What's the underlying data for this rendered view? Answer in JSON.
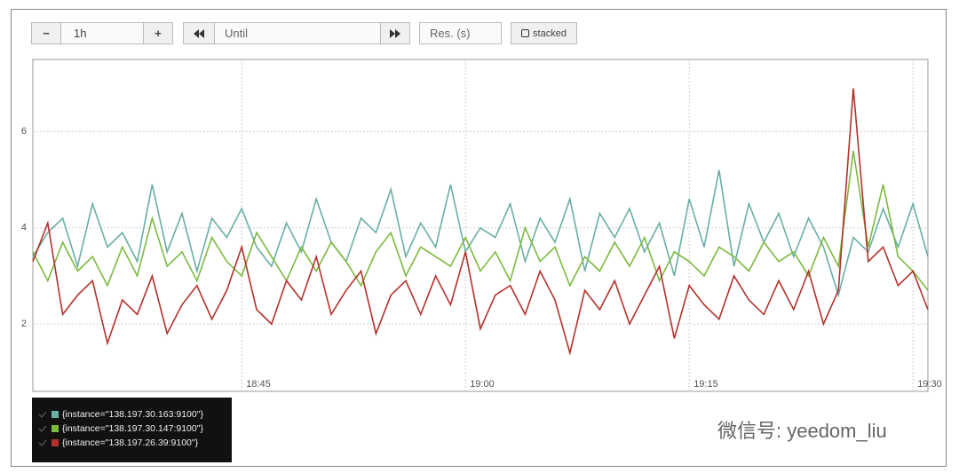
{
  "controls": {
    "minus": "−",
    "range": "1h",
    "plus": "+",
    "until": "Until",
    "resolution": "Res. (s)",
    "stacked": "stacked"
  },
  "watermark": "微信号: yeedom_liu",
  "chart_data": {
    "type": "line",
    "x": [
      "18:31",
      "18:32",
      "18:33",
      "18:34",
      "18:35",
      "18:36",
      "18:37",
      "18:38",
      "18:39",
      "18:40",
      "18:41",
      "18:42",
      "18:43",
      "18:44",
      "18:45",
      "18:46",
      "18:47",
      "18:48",
      "18:49",
      "18:50",
      "18:51",
      "18:52",
      "18:53",
      "18:54",
      "18:55",
      "18:56",
      "18:57",
      "18:58",
      "18:59",
      "19:00",
      "19:01",
      "19:02",
      "19:03",
      "19:04",
      "19:05",
      "19:06",
      "19:07",
      "19:08",
      "19:09",
      "19:10",
      "19:11",
      "19:12",
      "19:13",
      "19:14",
      "19:15",
      "19:16",
      "19:17",
      "19:18",
      "19:19",
      "19:20",
      "19:21",
      "19:22",
      "19:23",
      "19:24",
      "19:25",
      "19:26",
      "19:27",
      "19:28",
      "19:29",
      "19:30",
      "19:31"
    ],
    "series": [
      {
        "name": "{instance=\"138.197.30.163:9100\"}",
        "color": "#6aaea6",
        "values": [
          3.4,
          3.9,
          4.2,
          3.2,
          4.5,
          3.6,
          3.9,
          3.3,
          4.9,
          3.5,
          4.3,
          3.1,
          4.2,
          3.8,
          4.4,
          3.6,
          3.2,
          4.1,
          3.5,
          4.6,
          3.7,
          3.3,
          4.2,
          3.9,
          4.8,
          3.4,
          4.1,
          3.6,
          4.9,
          3.5,
          4.0,
          3.8,
          4.5,
          3.3,
          4.2,
          3.7,
          4.6,
          3.1,
          4.3,
          3.8,
          4.4,
          3.5,
          4.1,
          3.0,
          4.6,
          3.6,
          5.2,
          3.2,
          4.5,
          3.7,
          4.3,
          3.4,
          4.2,
          3.6,
          2.6,
          3.8,
          3.5,
          4.4,
          3.6,
          4.5,
          3.4
        ]
      },
      {
        "name": "{instance=\"138.197.30.147:9100\"}",
        "color": "#7cba3f",
        "values": [
          3.5,
          2.9,
          3.7,
          3.1,
          3.4,
          2.8,
          3.6,
          3.0,
          4.2,
          3.2,
          3.5,
          2.9,
          3.8,
          3.3,
          3.0,
          3.9,
          3.4,
          2.9,
          3.6,
          3.1,
          3.7,
          3.3,
          2.8,
          3.5,
          3.9,
          3.0,
          3.6,
          3.4,
          3.2,
          3.8,
          3.1,
          3.5,
          2.9,
          4.0,
          3.3,
          3.6,
          2.8,
          3.4,
          3.1,
          3.7,
          3.2,
          3.8,
          2.9,
          3.5,
          3.3,
          3.0,
          3.6,
          3.4,
          3.1,
          3.7,
          3.3,
          3.5,
          3.0,
          3.8,
          3.2,
          5.6,
          3.6,
          4.9,
          3.4,
          3.1,
          2.7
        ]
      },
      {
        "name": "{instance=\"138.197.26.39:9100\"}",
        "color": "#b3312b",
        "values": [
          3.3,
          4.1,
          2.2,
          2.6,
          2.9,
          1.6,
          2.5,
          2.2,
          3.0,
          1.8,
          2.4,
          2.8,
          2.1,
          2.7,
          3.6,
          2.3,
          2.0,
          2.9,
          2.5,
          3.4,
          2.2,
          2.7,
          3.1,
          1.8,
          2.6,
          2.9,
          2.2,
          3.0,
          2.4,
          3.5,
          1.9,
          2.6,
          2.8,
          2.2,
          3.1,
          2.5,
          1.4,
          2.7,
          2.3,
          2.9,
          2.0,
          2.6,
          3.2,
          1.7,
          2.8,
          2.4,
          2.1,
          3.0,
          2.5,
          2.2,
          2.9,
          2.3,
          3.1,
          2.0,
          2.7,
          6.9,
          3.3,
          3.6,
          2.8,
          3.1,
          2.3
        ]
      }
    ],
    "xlim": [
      "18:31",
      "19:31"
    ],
    "xticks": [
      "18:45",
      "19:00",
      "19:15",
      "19:30"
    ],
    "ylim": [
      0.6,
      7.5
    ],
    "yticks": [
      2,
      4,
      6
    ],
    "grid": true
  }
}
